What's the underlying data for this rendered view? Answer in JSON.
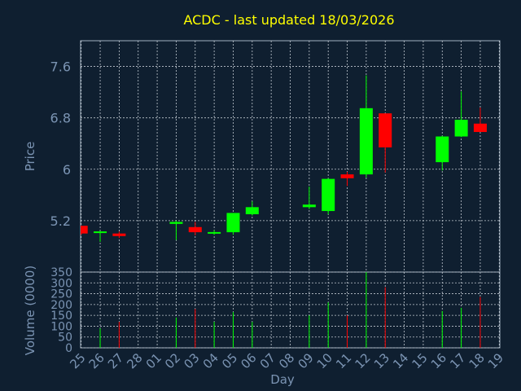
{
  "chart_data": {
    "type": "candlestick",
    "title": "ACDC - last updated 18/03/2026",
    "xlabel": "Day",
    "ylabel": "Price",
    "volume_label": "Volume (0000)",
    "price_ylim": [
      4.4,
      8.0
    ],
    "price_ticks": [
      5.2,
      6,
      6.8,
      7.6
    ],
    "price_tick_labels": [
      "5.2",
      "6",
      "6.8",
      "7.6"
    ],
    "volume_ylim": [
      0,
      350
    ],
    "volume_ticks": [
      0,
      50,
      100,
      150,
      200,
      250,
      300,
      350
    ],
    "x_tick_labels": [
      "25",
      "26",
      "27",
      "28",
      "01",
      "02",
      "03",
      "04",
      "05",
      "06",
      "07",
      "08",
      "09",
      "10",
      "11",
      "12",
      "13",
      "14",
      "15",
      "16",
      "17",
      "18",
      "19"
    ],
    "up_color": "#00ff00",
    "down_color": "#ff0000",
    "grid": true,
    "candles": [
      {
        "day": "25",
        "open": 5.12,
        "high": 5.12,
        "low": 4.98,
        "close": 5.0,
        "volume": 0
      },
      {
        "day": "26",
        "open": 5.01,
        "high": 5.04,
        "low": 4.87,
        "close": 5.03,
        "volume": 90
      },
      {
        "day": "27",
        "open": 5.0,
        "high": 5.03,
        "low": 4.93,
        "close": 4.96,
        "volume": 120
      },
      {
        "day": "02",
        "open": 5.15,
        "high": 5.2,
        "low": 4.9,
        "close": 5.18,
        "volume": 140
      },
      {
        "day": "03",
        "open": 5.1,
        "high": 5.18,
        "low": 4.97,
        "close": 5.02,
        "volume": 180
      },
      {
        "day": "04",
        "open": 5.0,
        "high": 5.05,
        "low": 4.98,
        "close": 5.02,
        "volume": 120
      },
      {
        "day": "05",
        "open": 5.02,
        "high": 5.32,
        "low": 4.98,
        "close": 5.32,
        "volume": 165
      },
      {
        "day": "06",
        "open": 5.3,
        "high": 5.5,
        "low": 5.28,
        "close": 5.41,
        "volume": 120
      },
      {
        "day": "09",
        "open": 5.41,
        "high": 5.73,
        "low": 5.38,
        "close": 5.45,
        "volume": 150
      },
      {
        "day": "10",
        "open": 5.35,
        "high": 5.86,
        "low": 5.3,
        "close": 5.85,
        "volume": 210
      },
      {
        "day": "11",
        "open": 5.92,
        "high": 5.96,
        "low": 5.74,
        "close": 5.86,
        "volume": 150
      },
      {
        "day": "12",
        "open": 5.92,
        "high": 7.46,
        "low": 5.87,
        "close": 6.95,
        "volume": 350
      },
      {
        "day": "13",
        "open": 6.87,
        "high": 6.87,
        "low": 5.95,
        "close": 6.34,
        "volume": 280
      },
      {
        "day": "16",
        "open": 6.11,
        "high": 6.52,
        "low": 5.98,
        "close": 6.51,
        "volume": 170
      },
      {
        "day": "17",
        "open": 6.51,
        "high": 7.21,
        "low": 6.5,
        "close": 6.77,
        "volume": 185
      },
      {
        "day": "18",
        "open": 6.71,
        "high": 6.96,
        "low": 6.58,
        "close": 6.58,
        "volume": 235
      }
    ]
  }
}
